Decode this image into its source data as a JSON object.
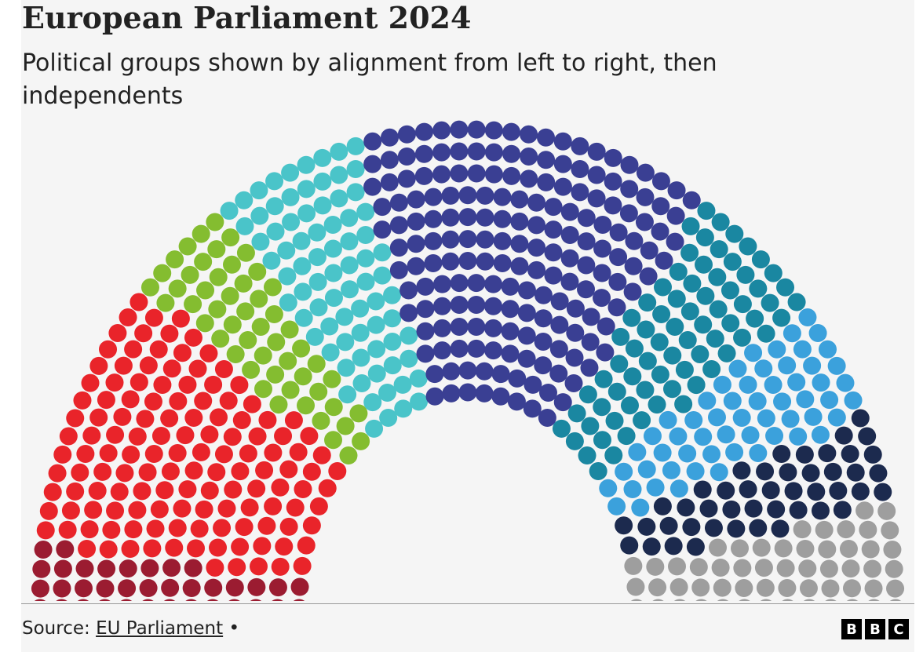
{
  "chart_data": {
    "type": "parliament",
    "title": "European Parliament 2024",
    "subtitle": "Political groups shown by alignment from left to right, then independents",
    "series": [
      {
        "color": "#9b1c31",
        "values": [
          36
        ]
      },
      {
        "color": "#e9242a",
        "values": [
          135
        ]
      },
      {
        "color": "#84bd30",
        "values": [
          53
        ]
      },
      {
        "color": "#4ac4c9",
        "values": [
          79
        ]
      },
      {
        "color": "#3a3f93",
        "values": [
          186
        ]
      },
      {
        "color": "#1a87a1",
        "values": [
          73
        ]
      },
      {
        "color": "#3ba1dc",
        "values": [
          58
        ]
      },
      {
        "color": "#1c2a4e",
        "values": [
          45
        ]
      },
      {
        "color": "#9e9e9e",
        "values": [
          55
        ]
      }
    ]
  },
  "footer": {
    "source_label": "Source:",
    "source_link": "EU Parliament",
    "separator": "•",
    "logo": [
      "B",
      "B",
      "C"
    ]
  }
}
